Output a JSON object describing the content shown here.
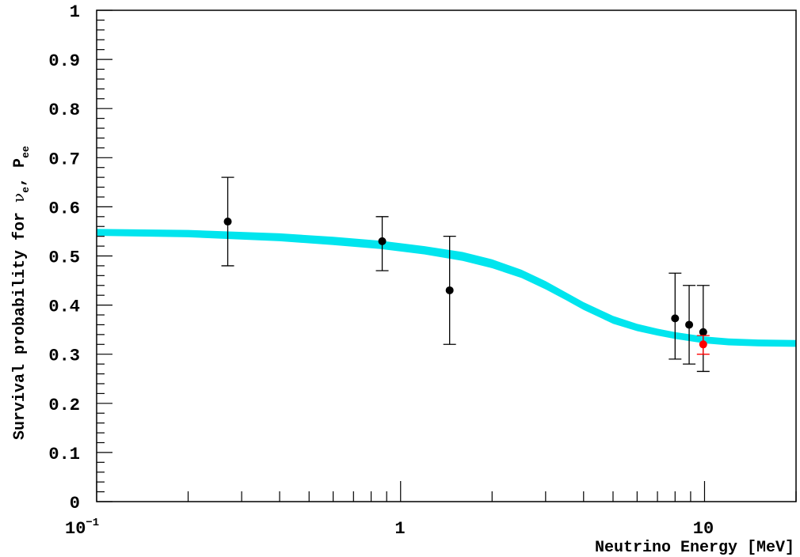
{
  "chart_data": {
    "type": "scatter",
    "xlabel": "Neutrino Energy [MeV]",
    "ylabel": {
      "prefix": "Survival probability for ",
      "nu": "ν",
      "nu_sub": "e",
      "sep": ", ",
      "P": "P",
      "P_sub": "ee"
    },
    "x_scale": "log",
    "xlim": [
      0.1,
      20
    ],
    "ylim": [
      0,
      1
    ],
    "y_ticks": [
      "0",
      "0.1",
      "0.2",
      "0.3",
      "0.4",
      "0.5",
      "0.6",
      "0.7",
      "0.8",
      "0.9",
      "1"
    ],
    "x_tick_labels": {
      "first_base": "10",
      "first_exp": "−1",
      "one": "1",
      "ten": "10"
    },
    "grid": false,
    "band": {
      "color": "#00e5ee",
      "x": [
        0.1,
        0.2,
        0.4,
        0.6,
        0.86,
        1.2,
        1.6,
        2.0,
        2.5,
        3.0,
        3.5,
        4.0,
        5.0,
        6.0,
        7.0,
        8.0,
        10.0,
        12.0,
        15.0,
        20.0
      ],
      "y_low": [
        0.541,
        0.538,
        0.53,
        0.522,
        0.514,
        0.503,
        0.49,
        0.475,
        0.455,
        0.432,
        0.41,
        0.39,
        0.362,
        0.347,
        0.338,
        0.331,
        0.322,
        0.318,
        0.316,
        0.315
      ],
      "y_high": [
        0.555,
        0.553,
        0.546,
        0.539,
        0.531,
        0.52,
        0.508,
        0.493,
        0.472,
        0.449,
        0.426,
        0.406,
        0.378,
        0.362,
        0.352,
        0.345,
        0.336,
        0.332,
        0.33,
        0.329
      ]
    },
    "series": [
      {
        "color": "#000000",
        "points": [
          {
            "x": 0.27,
            "y": 0.57,
            "ylow": 0.48,
            "yhigh": 0.66
          },
          {
            "x": 0.87,
            "y": 0.53,
            "ylow": 0.47,
            "yhigh": 0.58
          },
          {
            "x": 1.45,
            "y": 0.43,
            "ylow": 0.32,
            "yhigh": 0.54
          },
          {
            "x": 8.0,
            "y": 0.373,
            "ylow": 0.29,
            "yhigh": 0.465
          },
          {
            "x": 8.9,
            "y": 0.36,
            "ylow": 0.28,
            "yhigh": 0.44
          },
          {
            "x": 9.9,
            "y": 0.345,
            "ylow": 0.265,
            "yhigh": 0.44
          }
        ]
      },
      {
        "color": "#ff0000",
        "points": [
          {
            "x": 9.9,
            "y": 0.32,
            "ylow": 0.3,
            "yhigh": 0.338
          }
        ]
      }
    ]
  }
}
